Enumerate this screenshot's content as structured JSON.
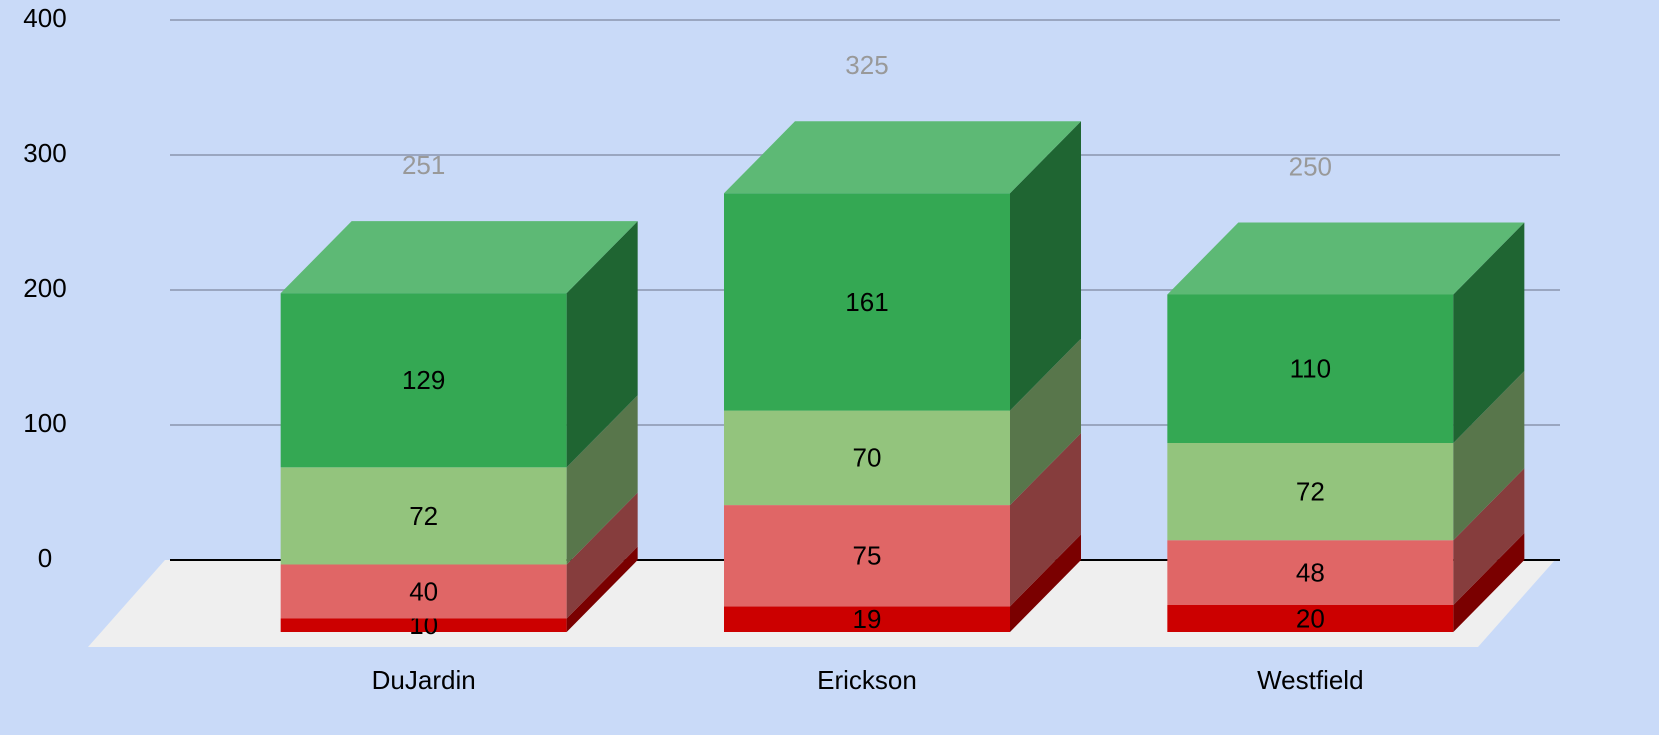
{
  "chart_data": {
    "type": "bar3d_stacked",
    "categories": [
      "DuJardin",
      "Erickson",
      "Westfield"
    ],
    "series": [
      {
        "color": "#cc0000",
        "values": [
          10,
          19,
          20
        ]
      },
      {
        "color": "#e06666",
        "values": [
          40,
          75,
          48
        ]
      },
      {
        "color": "#93c47d",
        "values": [
          72,
          70,
          72
        ]
      },
      {
        "color": "#34a853",
        "values": [
          129,
          161,
          110
        ]
      }
    ],
    "totals": [
      251,
      325,
      250
    ],
    "ylim": [
      0,
      400
    ],
    "yticks": [
      0,
      100,
      200,
      300,
      400
    ],
    "grid": true
  }
}
